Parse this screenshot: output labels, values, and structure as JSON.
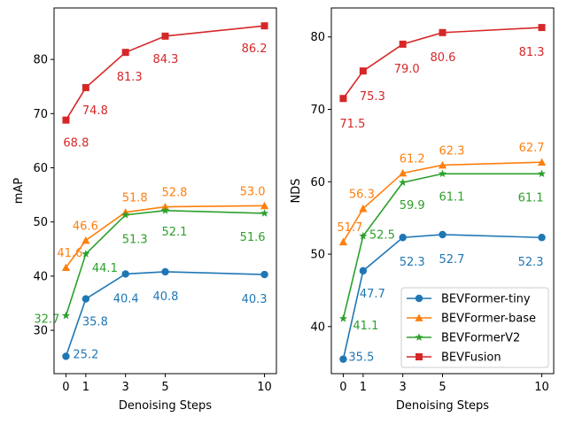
{
  "colors": {
    "BEVFormer-tiny": "#1f77b4",
    "BEVFormer-base": "#ff7f0e",
    "BEVFormerV2": "#2ca02c",
    "BEVFusion": "#d62728"
  },
  "chart_data": [
    {
      "type": "line",
      "id": "map",
      "xlabel": "Denoising Steps",
      "ylabel": "mAP",
      "x": [
        0,
        1,
        3,
        5,
        10
      ],
      "xticks": [
        0,
        1,
        3,
        5,
        10
      ],
      "xlim": [
        -0.6,
        10.6
      ],
      "ylim": [
        22,
        89.5
      ],
      "yticks": [
        30,
        40,
        50,
        60,
        70,
        80
      ],
      "series": [
        {
          "name": "BEVFormer-tiny",
          "marker": "circle",
          "values": [
            25.2,
            35.8,
            40.4,
            40.8,
            40.3
          ],
          "labels": [
            "25.2",
            "35.8",
            "40.4",
            "40.8",
            "40.3"
          ]
        },
        {
          "name": "BEVFormer-base",
          "marker": "triangle",
          "values": [
            41.6,
            46.6,
            51.8,
            52.8,
            53.0
          ],
          "labels": [
            "41.6",
            "46.6",
            "51.8",
            "52.8",
            "53.0"
          ]
        },
        {
          "name": "BEVFormerV2",
          "marker": "star",
          "values": [
            32.7,
            44.1,
            51.3,
            52.1,
            51.6
          ],
          "labels": [
            "32.7",
            "44.1",
            "51.3",
            "52.1",
            "51.6"
          ]
        },
        {
          "name": "BEVFusion",
          "marker": "square",
          "values": [
            68.8,
            74.8,
            81.3,
            84.3,
            86.2
          ],
          "labels": [
            "68.8",
            "74.8",
            "81.3",
            "84.3",
            "86.2"
          ]
        }
      ]
    },
    {
      "type": "line",
      "id": "nds",
      "xlabel": "Denoising Steps",
      "ylabel": "NDS",
      "x": [
        0,
        1,
        3,
        5,
        10
      ],
      "xticks": [
        0,
        1,
        3,
        5,
        10
      ],
      "xlim": [
        -0.6,
        10.6
      ],
      "ylim": [
        33.5,
        84.0
      ],
      "yticks": [
        40,
        50,
        60,
        70,
        80
      ],
      "legend": "lower-right",
      "series": [
        {
          "name": "BEVFormer-tiny",
          "marker": "circle",
          "values": [
            35.5,
            47.7,
            52.3,
            52.7,
            52.3
          ],
          "labels": [
            "35.5",
            "47.7",
            "52.3",
            "52.7",
            "52.3"
          ]
        },
        {
          "name": "BEVFormer-base",
          "marker": "triangle",
          "values": [
            51.7,
            56.3,
            61.2,
            62.3,
            62.7
          ],
          "labels": [
            "51.7",
            "56.3",
            "61.2",
            "62.3",
            "62.7"
          ]
        },
        {
          "name": "BEVFormerV2",
          "marker": "star",
          "values": [
            41.1,
            52.5,
            59.9,
            61.1,
            61.1
          ],
          "labels": [
            "41.1",
            "52.5",
            "59.9",
            "61.1",
            "61.1"
          ]
        },
        {
          "name": "BEVFusion",
          "marker": "square",
          "values": [
            71.5,
            75.3,
            79.0,
            80.6,
            81.3
          ],
          "labels": [
            "71.5",
            "75.3",
            "79.0",
            "80.6",
            "81.3"
          ]
        }
      ]
    }
  ]
}
